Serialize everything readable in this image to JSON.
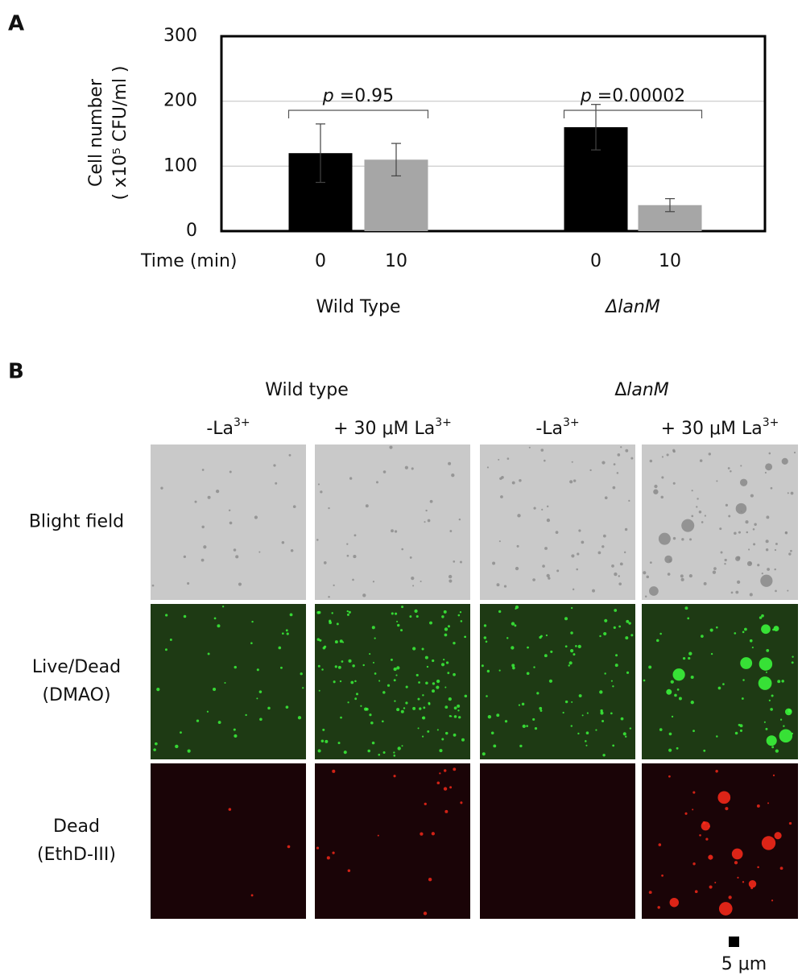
{
  "chart_data": {
    "type": "bar",
    "panel": "A",
    "y_label": [
      "Cell number",
      "( x10⁵ CFU/ml )"
    ],
    "x_label": "Time (min)",
    "categories": [
      "0",
      "10",
      "0",
      "10"
    ],
    "groups": [
      "Wild Type",
      "ΔlanM"
    ],
    "values": [
      120,
      110,
      160,
      40
    ],
    "errors": [
      45,
      25,
      35,
      10
    ],
    "colors": [
      "#000000",
      "#a6a6a6",
      "#000000",
      "#a6a6a6"
    ],
    "annotations": [
      {
        "symbol": "p",
        "text": " =0.95"
      },
      {
        "symbol": "p",
        "text": " =0.00002"
      }
    ],
    "ylim": [
      0,
      300
    ],
    "yticks": [
      0,
      100,
      200,
      300
    ],
    "grid": true
  },
  "panel_b": {
    "label": "B",
    "groups": [
      {
        "text": "Wild type"
      },
      {
        "text": "Δ",
        "italic": "lanM"
      }
    ],
    "columns": [
      {
        "text": "-La",
        "sup": "3+"
      },
      {
        "text": "+ 30 μM La",
        "sup": "3+"
      },
      {
        "text": "-La",
        "sup": "3+"
      },
      {
        "text": "+ 30 μM La",
        "sup": "3+"
      }
    ],
    "rows": [
      [
        "Blight field"
      ],
      [
        "Live/Dead",
        "(DMAO)"
      ],
      [
        "Dead",
        "(EthD-III)"
      ]
    ],
    "scale_bar": "5 μm"
  }
}
